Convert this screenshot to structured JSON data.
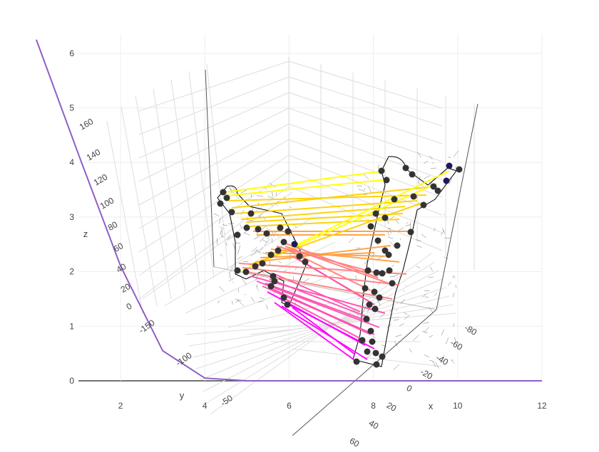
{
  "chart_data": [
    {
      "type": "line",
      "x": [
        0.0,
        1.0,
        2.0,
        3.0,
        4.0,
        5.0,
        6.0,
        7.0,
        8.0,
        9.0,
        10.0,
        11.0,
        12.0
      ],
      "y": [
        6.25,
        4.15,
        2.1,
        0.55,
        0.05,
        0.0,
        0.0,
        0.0,
        0.0,
        0.0,
        0.0,
        0.0,
        0.0
      ],
      "color": "#8e5ec4",
      "xaxis": {
        "range": [
          1.0,
          12.0
        ],
        "tickvals": [
          2,
          4,
          6,
          8,
          10,
          12
        ],
        "ticktext": [
          "2",
          "4",
          "6",
          "8",
          "10",
          "12"
        ],
        "title": ""
      },
      "yaxis": {
        "range": [
          0,
          6.35
        ],
        "tickvals": [
          0,
          1,
          2,
          3,
          4,
          5,
          6
        ],
        "ticktext": [
          "0",
          "1",
          "2",
          "3",
          "4",
          "5",
          "6"
        ],
        "title": ""
      },
      "grid": true
    },
    {
      "type": "scatter3d",
      "axes": {
        "x": {
          "title": "x",
          "ticks": [
            "-80",
            "-60",
            "-40",
            "-20",
            "0",
            "20",
            "40",
            "60"
          ]
        },
        "y": {
          "title": "y",
          "ticks": [
            "-150",
            "-100",
            "-50"
          ]
        },
        "z": {
          "title": "z",
          "ticks": [
            "0",
            "20",
            "40",
            "60",
            "80",
            "100",
            "120",
            "140",
            "160"
          ]
        }
      },
      "grid": true,
      "meshes": [
        {
          "name": "",
          "color": "#000000",
          "style": "wireframe"
        },
        {
          "name": "",
          "color": "#000000",
          "style": "wireframe"
        }
      ],
      "markers": {
        "color": "#333333",
        "highlight_color": "#1a1a5a"
      },
      "correspondence_lines": {
        "count": 40,
        "colorscale": [
          "#ff00ff",
          "#ff4fb0",
          "#ff8080",
          "#ffa040",
          "#ffd000",
          "#ffff00"
        ]
      }
    }
  ]
}
